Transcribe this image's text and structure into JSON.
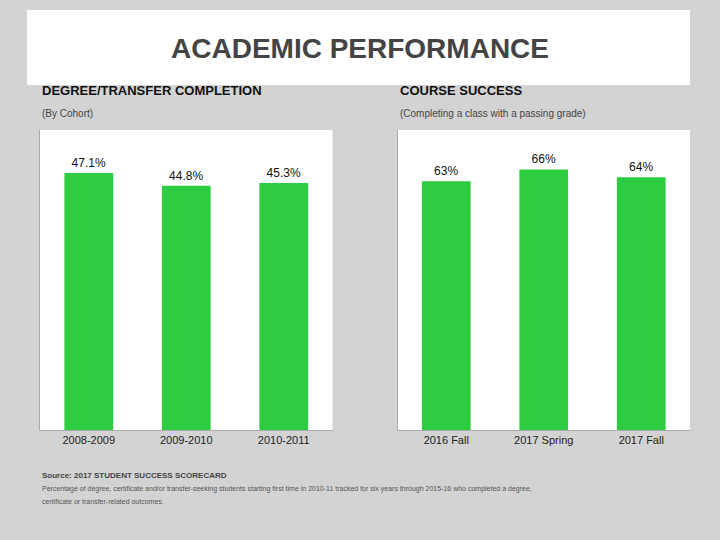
{
  "title": "ACADEMIC PERFORMANCE",
  "chart_data": [
    {
      "type": "bar",
      "title": "DEGREE/TRANSFER COMPLETION",
      "subtitle": "(By Cohort)",
      "categories": [
        "2008-2009",
        "2009-2010",
        "2010-2011"
      ],
      "values": [
        47.1,
        44.8,
        45.3
      ],
      "value_labels": [
        "47.1%",
        "44.8%",
        "45.3%"
      ],
      "data_labels": true,
      "color": "#2ecc40",
      "ylim": [
        0,
        55
      ],
      "tick_labels": "x",
      "grid": false
    },
    {
      "type": "bar",
      "title": "COURSE SUCCESS",
      "subtitle": "(Completing a class with a passing grade)",
      "categories": [
        "2016 Fall",
        "2017 Spring",
        "2017 Fall"
      ],
      "values": [
        63,
        66,
        64
      ],
      "value_labels": [
        "63%",
        "66%",
        "64%"
      ],
      "data_labels": true,
      "color": "#2ecc40",
      "ylim": [
        0,
        76
      ],
      "tick_labels": "x",
      "grid": false
    }
  ],
  "annotations": [
    "Source: 2017 STUDENT SUCCESS SCORECARD",
    "Percentage of degree, certificate and/or transfer-seeking students starting first time in 2010-11 tracked for six years through 2015-16 who completed a degree,",
    "certificate or transfer-related outcomes."
  ]
}
